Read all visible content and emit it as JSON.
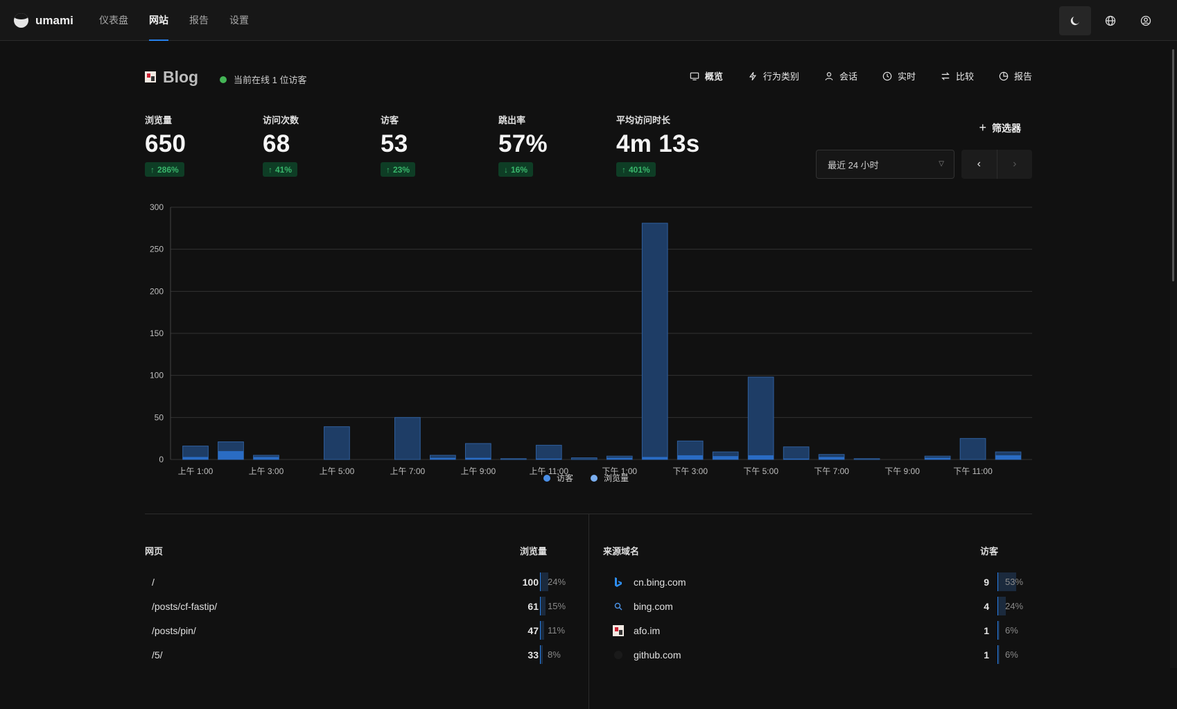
{
  "app": {
    "name": "umami"
  },
  "nav": {
    "items": [
      "仪表盘",
      "网站",
      "报告",
      "设置"
    ],
    "active": 1
  },
  "site": {
    "title": "Blog",
    "online_text": "当前在线 1 位访客"
  },
  "site_tabs": [
    {
      "label": "概览",
      "icon": "monitor-icon",
      "active": true
    },
    {
      "label": "行为类别",
      "icon": "lightning-icon",
      "active": false
    },
    {
      "label": "会话",
      "icon": "user-icon",
      "active": false
    },
    {
      "label": "实时",
      "icon": "clock-icon",
      "active": false
    },
    {
      "label": "比较",
      "icon": "swap-icon",
      "active": false
    },
    {
      "label": "报告",
      "icon": "pie-chart-icon",
      "active": false
    }
  ],
  "metrics": [
    {
      "label": "浏览量",
      "value": "650",
      "change": "286%",
      "direction": "up"
    },
    {
      "label": "访问次数",
      "value": "68",
      "change": "41%",
      "direction": "up"
    },
    {
      "label": "访客",
      "value": "53",
      "change": "23%",
      "direction": "up"
    },
    {
      "label": "跳出率",
      "value": "57%",
      "change": "16%",
      "direction": "down"
    },
    {
      "label": "平均访问时长",
      "value": "4m 13s",
      "change": "401%",
      "direction": "up"
    }
  ],
  "filter": {
    "label": "筛选器"
  },
  "date_range": {
    "selected": "最近 24 小时"
  },
  "colors": {
    "accent": "#2680eb",
    "positive": "#39b66b",
    "bar_views": "#1e3d66",
    "bar_visitors": "#2a6cc4"
  },
  "chart_data": {
    "type": "bar",
    "x": [
      "上午 1:00",
      "上午 2:00",
      "上午 3:00",
      "上午 4:00",
      "上午 5:00",
      "上午 6:00",
      "上午 7:00",
      "上午 8:00",
      "上午 9:00",
      "上午 10:00",
      "上午 11:00",
      "下午 12:00",
      "下午 1:00",
      "下午 2:00",
      "下午 3:00",
      "下午 4:00",
      "下午 5:00",
      "下午 6:00",
      "下午 7:00",
      "下午 8:00",
      "下午 9:00",
      "下午 10:00",
      "下午 11:00",
      "上午 12:00"
    ],
    "tick_labels": [
      "上午 1:00",
      "上午 3:00",
      "上午 5:00",
      "上午 7:00",
      "上午 9:00",
      "上午 11:00",
      "下午 1:00",
      "下午 3:00",
      "下午 5:00",
      "下午 7:00",
      "下午 9:00",
      "下午 11:00"
    ],
    "series": [
      {
        "name": "访客",
        "values": [
          3,
          10,
          3,
          0,
          0,
          0,
          0,
          2,
          2,
          0,
          1,
          0,
          2,
          3,
          5,
          4,
          5,
          1,
          3,
          0,
          0,
          2,
          0,
          5
        ]
      },
      {
        "name": "浏览量",
        "values": [
          16,
          21,
          5,
          0,
          39,
          0,
          50,
          5,
          19,
          1,
          17,
          2,
          4,
          281,
          22,
          9,
          98,
          15,
          6,
          1,
          0,
          4,
          25,
          9
        ]
      }
    ],
    "ylim": [
      0,
      300
    ],
    "yticks": [
      0,
      50,
      100,
      150,
      200,
      250,
      300
    ],
    "grid": true,
    "legend": "bottom-center"
  },
  "pages_panel": {
    "title": "网页",
    "metric": "浏览量",
    "rows": [
      {
        "label": "/",
        "value": "100",
        "pct": "24%",
        "frac": 0.24
      },
      {
        "label": "/posts/cf-fastip/",
        "value": "61",
        "pct": "15%",
        "frac": 0.15
      },
      {
        "label": "/posts/pin/",
        "value": "47",
        "pct": "11%",
        "frac": 0.11
      },
      {
        "label": "/5/",
        "value": "33",
        "pct": "8%",
        "frac": 0.08
      }
    ]
  },
  "referrers_panel": {
    "title": "来源域名",
    "metric": "访客",
    "rows": [
      {
        "label": "cn.bing.com",
        "icon": "bing-icon",
        "value": "9",
        "pct": "53%",
        "frac": 0.53
      },
      {
        "label": "bing.com",
        "icon": "search-icon",
        "value": "4",
        "pct": "24%",
        "frac": 0.24
      },
      {
        "label": "afo.im",
        "icon": "site-favicon-icon",
        "value": "1",
        "pct": "6%",
        "frac": 0.06
      },
      {
        "label": "github.com",
        "icon": "github-icon",
        "value": "1",
        "pct": "6%",
        "frac": 0.06
      }
    ]
  }
}
